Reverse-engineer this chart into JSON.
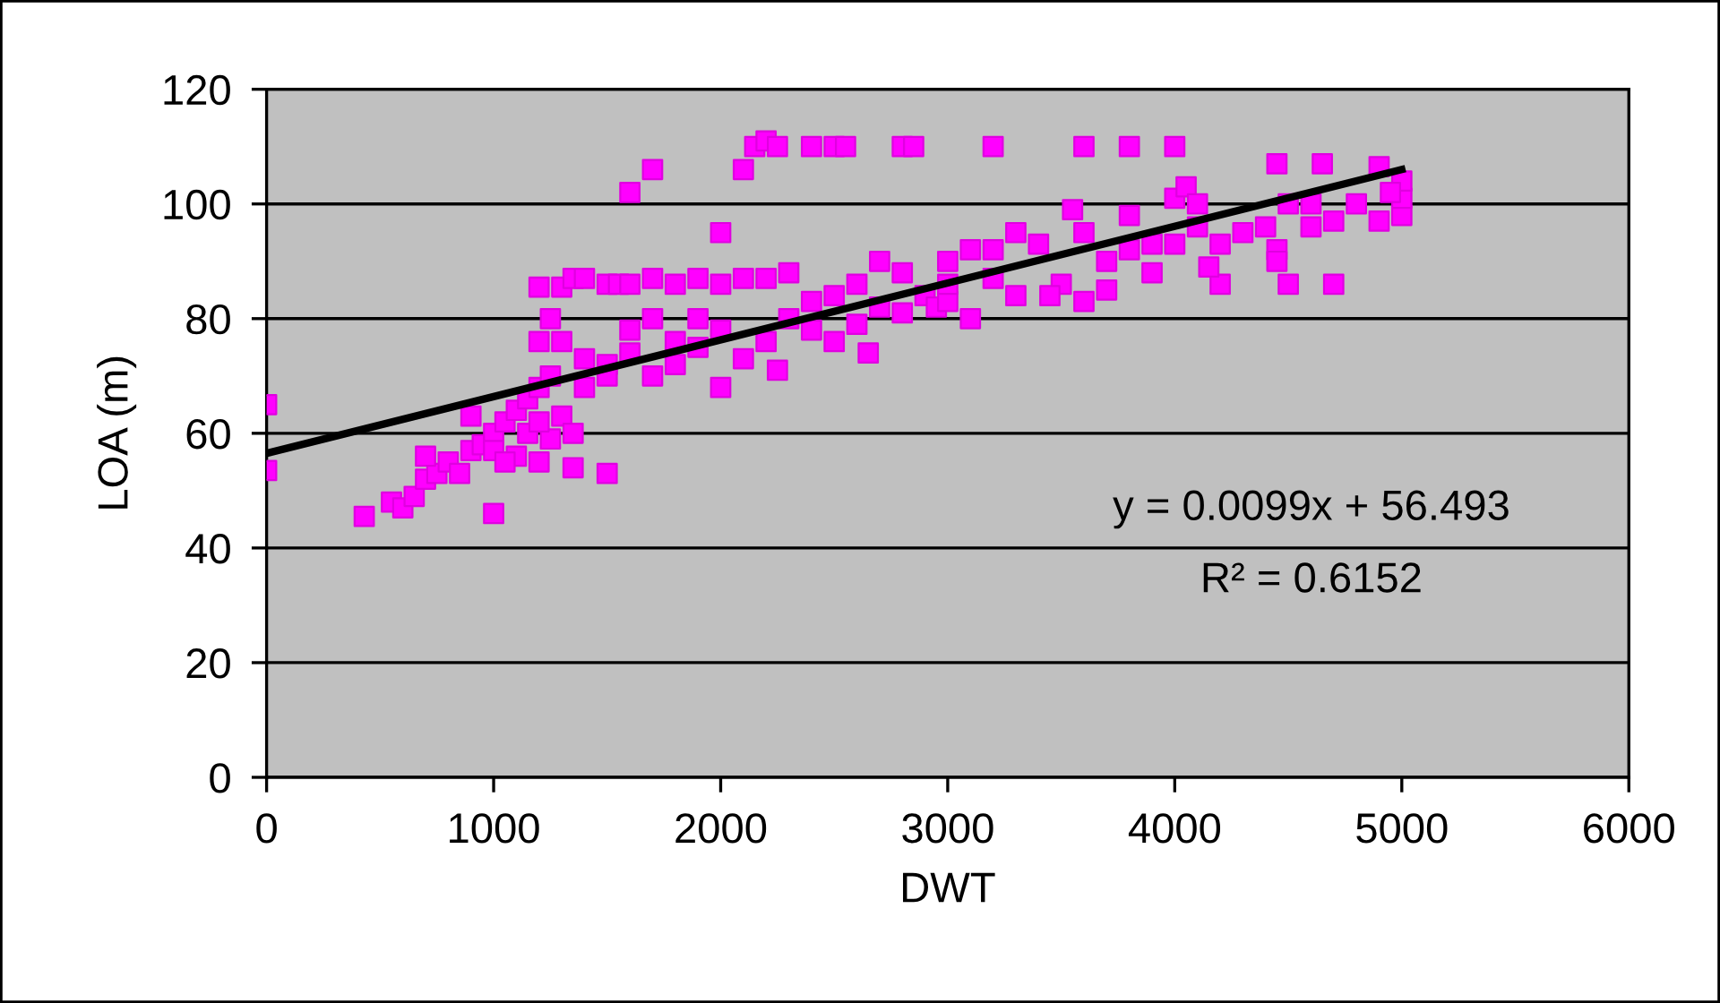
{
  "chart_data": {
    "type": "scatter",
    "xlabel": "DWT",
    "ylabel": "LOA (m)",
    "xlim": [
      0,
      6000
    ],
    "ylim": [
      0,
      120
    ],
    "xticks": [
      0,
      1000,
      2000,
      3000,
      4000,
      5000,
      6000
    ],
    "yticks": [
      0,
      20,
      40,
      60,
      80,
      100,
      120
    ],
    "grid": "y",
    "legend": false,
    "series": [
      {
        "marker": "square",
        "color": "#ff00ff",
        "x": [
          0,
          0,
          430,
          1000,
          1600,
          1700,
          2000,
          2150,
          2200,
          2250,
          2100,
          2400,
          2500,
          2550,
          2800,
          2850,
          3200,
          3600,
          3800,
          4000,
          4450,
          4650,
          4900,
          1500,
          1350,
          4500,
          4700,
          4200,
          3600,
          2650,
          1200,
          1300,
          1350,
          1400,
          1500,
          1550,
          1600,
          1700,
          1800,
          1900,
          2000,
          2100,
          2200,
          2300,
          550,
          600,
          650,
          700,
          750,
          800,
          850,
          900,
          950,
          1000,
          1050,
          1100,
          1150,
          1200,
          1250,
          1300,
          1350,
          1100,
          1200,
          1250,
          1200,
          1300,
          1250,
          700,
          900,
          1000,
          1150,
          1050,
          1200,
          1400,
          1500,
          1600,
          1700,
          1800,
          1900,
          2000,
          2000,
          2100,
          2200,
          2300,
          2250,
          2400,
          2500,
          2400,
          2600,
          2700,
          2800,
          2900,
          3000,
          2950,
          3100,
          3200,
          3300,
          3400,
          3500,
          3600,
          3700,
          3800,
          3900,
          3550,
          3000,
          3100,
          2500,
          2700,
          3300,
          3450,
          3700,
          4000,
          4050,
          4100,
          4000,
          4200,
          4300,
          4400,
          4500,
          4450,
          4600,
          4700,
          4800,
          4900,
          5000,
          5000,
          5000,
          4950,
          4150,
          4450,
          4600,
          4100,
          3900,
          3800,
          1600,
          1700,
          1800,
          1900,
          1500,
          1400,
          2600,
          2800,
          3200,
          3000
        ],
        "values": [
          65,
          53.5,
          45.5,
          46,
          102,
          106,
          95,
          110,
          111,
          110,
          106,
          110,
          110,
          110,
          110,
          110,
          110,
          110,
          110,
          110,
          107,
          107,
          106.5,
          53,
          54,
          86,
          86,
          86,
          83,
          74,
          85.5,
          85.5,
          87,
          87,
          86,
          86,
          86,
          87,
          86,
          87,
          86,
          87,
          87,
          88,
          48,
          47,
          49,
          52,
          53,
          55,
          53,
          57,
          58,
          60,
          62,
          64,
          66,
          68,
          70,
          63,
          60,
          56,
          55,
          59,
          76,
          76,
          80,
          56,
          63,
          57,
          60,
          55,
          62,
          68,
          72,
          74,
          70,
          72,
          75,
          68,
          78,
          73,
          76,
          80,
          71,
          78,
          76,
          83,
          86,
          82,
          88,
          84,
          90,
          82,
          92,
          87,
          84,
          93,
          86,
          95,
          90,
          98,
          93,
          99,
          83,
          80,
          84,
          90,
          95,
          84,
          85,
          101,
          103,
          100,
          93,
          93,
          95,
          96,
          100,
          92,
          96,
          97,
          100,
          97,
          98,
          101,
          104,
          102,
          89,
          90,
          100,
          96,
          88,
          92,
          78,
          80,
          76,
          80,
          70,
          73,
          79,
          81,
          92,
          86
        ]
      },
      {
        "type": "line",
        "marker": "none",
        "color": "#000000",
        "x": [
          0,
          5000
        ],
        "values": [
          56.5,
          106
        ]
      }
    ],
    "annotations": [
      "y = 0.0099x + 56.493",
      "R² = 0.6152"
    ]
  }
}
